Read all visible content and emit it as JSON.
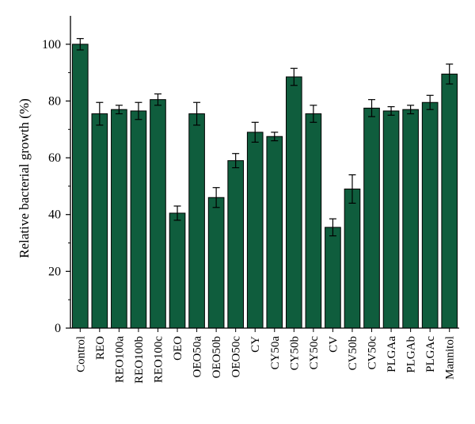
{
  "chart_data": {
    "type": "bar",
    "title": "",
    "xlabel": "",
    "ylabel": "Relative bacterial growth (%)",
    "ylim": [
      0,
      110
    ],
    "yticks": [
      0,
      20,
      40,
      60,
      80,
      100
    ],
    "grid": false,
    "bar_color": "#0f5d3d",
    "categories": [
      "Control",
      "REO",
      "REO100a",
      "REO100b",
      "REO100c",
      "OEO",
      "OEO50a",
      "OEO50b",
      "OEO50c",
      "CY",
      "CY50a",
      "CY50b",
      "CY50c",
      "CV",
      "CV50b",
      "CV50c",
      "PLGAa",
      "PLGAb",
      "PLGAc",
      "Mannitol"
    ],
    "values": [
      100,
      75.5,
      77,
      76.5,
      80.5,
      40.5,
      75.5,
      46,
      59,
      69,
      67.5,
      88.5,
      75.5,
      35.5,
      49,
      77.5,
      76.5,
      77,
      79.5,
      89.5
    ],
    "errors": [
      2,
      4,
      1.5,
      3,
      2,
      2.5,
      4,
      3.5,
      2.5,
      3.5,
      1.5,
      3,
      3,
      3,
      5,
      3,
      1.5,
      1.5,
      2.5,
      3.5
    ]
  }
}
